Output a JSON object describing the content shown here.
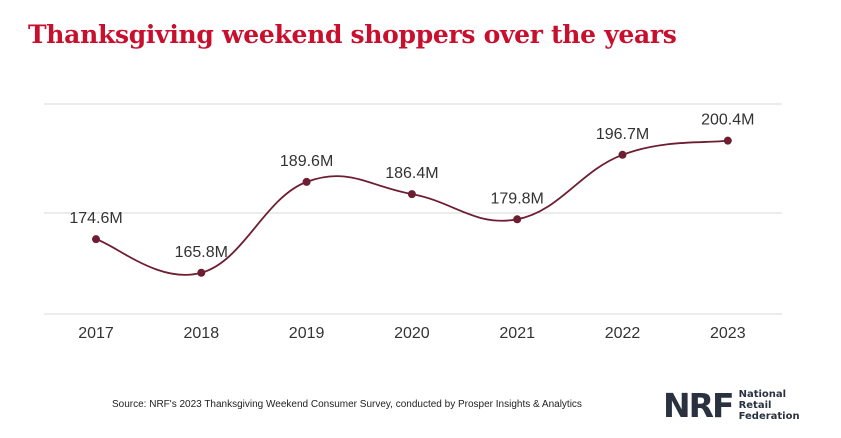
{
  "title": "Thanksgiving weekend shoppers over the years",
  "source": "Source: NRF's 2023 Thanksgiving Weekend Consumer Survey, conducted by Prosper Insights & Analytics",
  "logo": {
    "mark": "NRF",
    "line1": "National",
    "line2": "Retail",
    "line3": "Federation"
  },
  "colors": {
    "title": "#c8102e",
    "line": "#6e1e32",
    "grid": "#d9d9d9",
    "text": "#333333"
  },
  "chart_data": {
    "type": "line",
    "categories": [
      "2017",
      "2018",
      "2019",
      "2020",
      "2021",
      "2022",
      "2023"
    ],
    "values": [
      174.6,
      165.8,
      189.6,
      186.4,
      179.8,
      196.7,
      200.4
    ],
    "labels": [
      "174.6M",
      "165.8M",
      "189.6M",
      "186.4M",
      "179.8M",
      "196.7M",
      "200.4M"
    ],
    "unit": "M",
    "ylim": [
      155,
      210
    ],
    "grid": true,
    "title": "Thanksgiving weekend shoppers over the years"
  }
}
